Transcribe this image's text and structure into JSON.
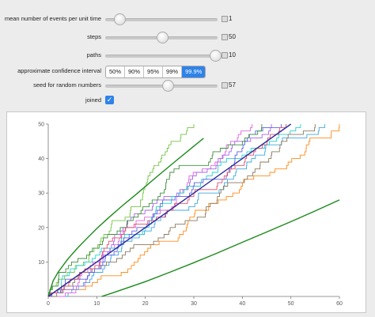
{
  "controls": {
    "events_per_time": {
      "label": "mean number of events per unit time",
      "value": "1",
      "fraction": 0.12
    },
    "steps": {
      "label": "steps",
      "value": "50",
      "fraction": 0.5
    },
    "paths": {
      "label": "paths",
      "value": "10",
      "fraction": 0.97
    },
    "confidence": {
      "label": "approximate confidence interval",
      "options": [
        "50%",
        "90%",
        "95%",
        "99%",
        "99.9%"
      ],
      "selected": "99.9%"
    },
    "seed": {
      "label": "seed for random numbers",
      "value": "57",
      "fraction": 0.55
    },
    "joined": {
      "label": "joined",
      "checked": true
    }
  },
  "colors": {
    "accent": "#2f83e8",
    "mean_line": "#2b2b9c",
    "bounds": "#1a8a1a",
    "paths": [
      "#ff8c1a",
      "#3fa9e0",
      "#76c447",
      "#e066e0",
      "#a466e8",
      "#26d0d0",
      "#8a7a60",
      "#5a62e6",
      "#3f8f3f",
      "#e2506d"
    ]
  },
  "chart_data": {
    "type": "line",
    "xlim": [
      0,
      60
    ],
    "ylim": [
      0,
      50
    ],
    "x_ticks": [
      0,
      10,
      20,
      30,
      40,
      50,
      60
    ],
    "y_ticks": [
      10,
      20,
      30,
      40,
      50
    ],
    "mean_line": {
      "x": [
        0,
        50
      ],
      "y": [
        0,
        50
      ]
    },
    "lower_bound": {
      "x": [
        11,
        13,
        20,
        25,
        30,
        35,
        40,
        45,
        50,
        55,
        60
      ],
      "y": [
        0,
        0.9,
        4.3,
        7.0,
        9.8,
        12.7,
        15.7,
        18.7,
        21.7,
        24.8,
        28.0
      ]
    },
    "upper_bound": {
      "x": [
        0,
        1,
        2,
        4,
        6,
        8,
        10,
        12,
        15,
        18,
        22,
        26,
        30,
        32
      ],
      "y": [
        0,
        4.5,
        7.0,
        10.8,
        14.0,
        16.9,
        19.7,
        22.3,
        26.0,
        29.5,
        34.3,
        39.0,
        43.6,
        45.9
      ]
    },
    "series": [
      {
        "end_x": 60,
        "end_y": 50
      },
      {
        "end_x": 57,
        "end_y": 50
      },
      {
        "end_x": 30,
        "end_y": 50
      },
      {
        "end_x": 42,
        "end_y": 50
      },
      {
        "end_x": 46,
        "end_y": 50
      },
      {
        "end_x": 52,
        "end_y": 50
      },
      {
        "end_x": 55,
        "end_y": 50
      },
      {
        "end_x": 48,
        "end_y": 50
      },
      {
        "end_x": 44,
        "end_y": 50
      },
      {
        "end_x": 49,
        "end_y": 50
      }
    ]
  }
}
